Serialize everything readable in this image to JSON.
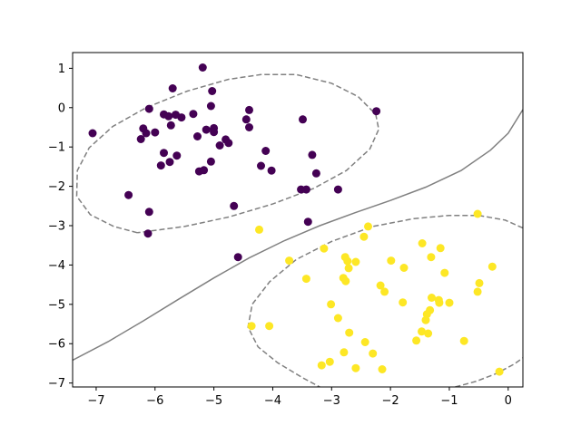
{
  "chart_data": {
    "type": "scatter",
    "title": "",
    "xlabel": "",
    "ylabel": "",
    "xlim": [
      -7.4,
      0.25
    ],
    "ylim": [
      -7.1,
      1.4
    ],
    "grid": false,
    "x_ticks": [
      -7,
      -6,
      -5,
      -4,
      -3,
      -2,
      -1,
      0
    ],
    "y_ticks": [
      1,
      0,
      -1,
      -2,
      -3,
      -4,
      -5,
      -6,
      -7
    ],
    "x_tick_labels": [
      "−7",
      "−6",
      "−5",
      "−4",
      "−3",
      "−2",
      "−1",
      "0"
    ],
    "y_tick_labels": [
      "1",
      "0",
      "−1",
      "−2",
      "−3",
      "−4",
      "−5",
      "−6",
      "−7"
    ],
    "series": [
      {
        "color": "#440154",
        "points": [
          [
            -7.06,
            -0.65
          ],
          [
            -6.1,
            -0.03
          ],
          [
            -5.85,
            -0.17
          ],
          [
            -5.19,
            1.02
          ],
          [
            -5.03,
            0.42
          ],
          [
            -5.05,
            0.04
          ],
          [
            -4.4,
            -0.06
          ],
          [
            -3.49,
            -0.3
          ],
          [
            -2.24,
            -0.09
          ],
          [
            -5.7,
            0.49
          ],
          [
            -6.0,
            -0.63
          ],
          [
            -6.2,
            -0.53
          ],
          [
            -6.15,
            -0.65
          ],
          [
            -6.24,
            -0.8
          ],
          [
            -5.9,
            -1.47
          ],
          [
            -5.85,
            -1.15
          ],
          [
            -5.75,
            -1.38
          ],
          [
            -5.77,
            -0.22
          ],
          [
            -5.73,
            -0.45
          ],
          [
            -5.65,
            -0.18
          ],
          [
            -5.55,
            -0.25
          ],
          [
            -5.35,
            -0.16
          ],
          [
            -5.28,
            -0.73
          ],
          [
            -5.13,
            -0.56
          ],
          [
            -5.0,
            -0.52
          ],
          [
            -5.0,
            -0.62
          ],
          [
            -4.9,
            -0.96
          ],
          [
            -4.8,
            -0.81
          ],
          [
            -4.75,
            -0.9
          ],
          [
            -4.45,
            -0.3
          ],
          [
            -4.4,
            -0.5
          ],
          [
            -4.12,
            -1.1
          ],
          [
            -4.02,
            -1.6
          ],
          [
            -4.2,
            -1.48
          ],
          [
            -5.25,
            -1.62
          ],
          [
            -5.17,
            -1.59
          ],
          [
            -5.05,
            -1.37
          ],
          [
            -5.63,
            -1.22
          ],
          [
            -3.33,
            -1.2
          ],
          [
            -3.26,
            -1.67
          ],
          [
            -3.52,
            -2.08
          ],
          [
            -3.43,
            -2.08
          ],
          [
            -2.89,
            -2.08
          ],
          [
            -6.45,
            -2.22
          ],
          [
            -6.1,
            -2.65
          ],
          [
            -6.12,
            -3.2
          ],
          [
            -4.66,
            -2.5
          ],
          [
            -3.4,
            -2.9
          ],
          [
            -4.59,
            -3.8
          ]
        ]
      },
      {
        "color": "#fde725",
        "points": [
          [
            -0.52,
            -2.7
          ],
          [
            -2.38,
            -3.02
          ],
          [
            -2.45,
            -3.28
          ],
          [
            -4.23,
            -3.1
          ],
          [
            -3.72,
            -3.89
          ],
          [
            -3.13,
            -3.58
          ],
          [
            -2.77,
            -3.8
          ],
          [
            -2.73,
            -3.9
          ],
          [
            -2.71,
            -4.08
          ],
          [
            -2.59,
            -3.92
          ],
          [
            -1.99,
            -3.89
          ],
          [
            -1.77,
            -4.07
          ],
          [
            -1.46,
            -3.45
          ],
          [
            -1.31,
            -3.8
          ],
          [
            -1.15,
            -3.57
          ],
          [
            -1.08,
            -4.2
          ],
          [
            -0.27,
            -4.04
          ],
          [
            -3.43,
            -4.35
          ],
          [
            -2.8,
            -4.33
          ],
          [
            -2.76,
            -4.41
          ],
          [
            -2.17,
            -4.52
          ],
          [
            -2.1,
            -4.68
          ],
          [
            -1.79,
            -4.95
          ],
          [
            -1.3,
            -4.83
          ],
          [
            -1.18,
            -4.89
          ],
          [
            -1.17,
            -4.96
          ],
          [
            -1.0,
            -4.96
          ],
          [
            -0.49,
            -4.46
          ],
          [
            -0.52,
            -4.68
          ],
          [
            -3.01,
            -5.0
          ],
          [
            -2.89,
            -5.35
          ],
          [
            -1.33,
            -5.15
          ],
          [
            -1.38,
            -5.25
          ],
          [
            -1.4,
            -5.4
          ],
          [
            -4.36,
            -5.55
          ],
          [
            -4.06,
            -5.55
          ],
          [
            -2.7,
            -5.72
          ],
          [
            -2.43,
            -5.96
          ],
          [
            -1.47,
            -5.69
          ],
          [
            -1.36,
            -5.74
          ],
          [
            -1.56,
            -5.92
          ],
          [
            -0.75,
            -5.93
          ],
          [
            -2.79,
            -6.22
          ],
          [
            -2.3,
            -6.25
          ],
          [
            -3.03,
            -6.46
          ],
          [
            -3.17,
            -6.55
          ],
          [
            -2.59,
            -6.62
          ],
          [
            -2.14,
            -6.65
          ],
          [
            -0.15,
            -6.71
          ]
        ]
      }
    ],
    "decision_boundary": {
      "color": "#808080",
      "curves": [
        {
          "style": "solid",
          "points": [
            [
              -7.4,
              -6.42
            ],
            [
              -6.8,
              -5.95
            ],
            [
              -6.2,
              -5.42
            ],
            [
              -5.6,
              -4.87
            ],
            [
              -5.0,
              -4.33
            ],
            [
              -4.4,
              -3.82
            ],
            [
              -3.8,
              -3.38
            ],
            [
              -3.2,
              -3.0
            ],
            [
              -2.6,
              -2.67
            ],
            [
              -2.0,
              -2.36
            ],
            [
              -1.4,
              -2.02
            ],
            [
              -0.8,
              -1.6
            ],
            [
              -0.3,
              -1.08
            ],
            [
              0.0,
              -0.65
            ],
            [
              0.25,
              -0.05
            ]
          ]
        },
        {
          "style": "dashed",
          "points": [
            [
              -6.3,
              -3.18
            ],
            [
              -6.7,
              -3.02
            ],
            [
              -7.1,
              -2.72
            ],
            [
              -7.33,
              -2.25
            ],
            [
              -7.32,
              -1.6
            ],
            [
              -7.12,
              -1.02
            ],
            [
              -6.72,
              -0.48
            ],
            [
              -6.15,
              -0.0
            ],
            [
              -5.45,
              0.42
            ],
            [
              -4.75,
              0.72
            ],
            [
              -4.2,
              0.84
            ],
            [
              -3.6,
              0.84
            ],
            [
              -3.0,
              0.62
            ],
            [
              -2.55,
              0.28
            ],
            [
              -2.25,
              -0.17
            ],
            [
              -2.2,
              -0.55
            ],
            [
              -2.35,
              -1.05
            ],
            [
              -2.75,
              -1.6
            ],
            [
              -3.3,
              -2.05
            ],
            [
              -4.0,
              -2.45
            ],
            [
              -4.75,
              -2.78
            ],
            [
              -5.5,
              -3.02
            ],
            [
              -6.3,
              -3.18
            ]
          ]
        },
        {
          "style": "dashed",
          "points": [
            [
              0.25,
              -3.06
            ],
            [
              -0.05,
              -2.86
            ],
            [
              -0.5,
              -2.74
            ],
            [
              -1.0,
              -2.74
            ],
            [
              -1.6,
              -2.82
            ],
            [
              -2.3,
              -3.02
            ],
            [
              -3.0,
              -3.4
            ],
            [
              -3.6,
              -3.86
            ],
            [
              -4.05,
              -4.42
            ],
            [
              -4.35,
              -5.0
            ],
            [
              -4.42,
              -5.58
            ],
            [
              -4.25,
              -6.08
            ],
            [
              -3.92,
              -6.48
            ],
            [
              -3.5,
              -6.86
            ],
            [
              -3.2,
              -7.1
            ]
          ]
        },
        {
          "style": "dashed",
          "points": [
            [
              -0.9,
              -7.1
            ],
            [
              -0.55,
              -6.96
            ],
            [
              -0.2,
              -6.76
            ],
            [
              0.1,
              -6.52
            ],
            [
              0.25,
              -6.36
            ]
          ]
        }
      ]
    }
  }
}
